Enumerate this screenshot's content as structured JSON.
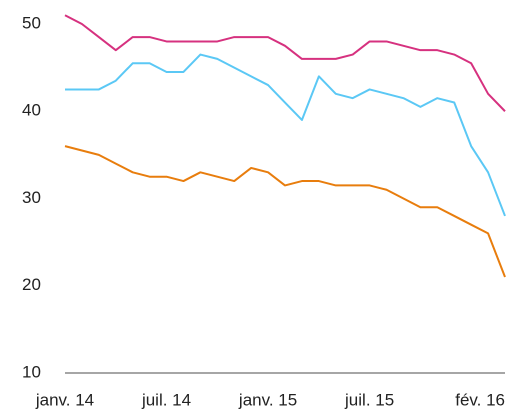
{
  "chart_data": {
    "type": "line",
    "x": [
      0,
      1,
      2,
      3,
      4,
      5,
      6,
      7,
      8,
      9,
      10,
      11,
      12,
      13,
      14,
      15,
      16,
      17,
      18,
      19,
      20,
      21,
      22,
      23,
      24,
      25,
      26
    ],
    "series": [
      {
        "color": "#d6317f",
        "values": [
          51,
          50,
          48.5,
          47,
          48.5,
          48.5,
          48,
          48,
          48,
          48,
          48.5,
          48.5,
          48.5,
          47.5,
          46,
          46,
          46,
          46.5,
          48,
          48,
          47.5,
          47,
          47,
          46.5,
          45.5,
          42,
          40
        ]
      },
      {
        "color": "#5bc8f5",
        "values": [
          42.5,
          42.5,
          42.5,
          43.5,
          45.5,
          45.5,
          44.5,
          44.5,
          46.5,
          46,
          45,
          44,
          43,
          41,
          39,
          44,
          42,
          41.5,
          42.5,
          42,
          41.5,
          40.5,
          41.5,
          41,
          36,
          33,
          28
        ]
      },
      {
        "color": "#e87d0d",
        "values": [
          36,
          35.5,
          35,
          34,
          33,
          32.5,
          32.5,
          32,
          33,
          32.5,
          32,
          33.5,
          33,
          31.5,
          32,
          32,
          31.5,
          31.5,
          31.5,
          31,
          30,
          29,
          29,
          28,
          27,
          26,
          21
        ]
      }
    ],
    "xlim": [
      0,
      26
    ],
    "xticks": [
      {
        "value": 0,
        "label": "janv. 14"
      },
      {
        "value": 6,
        "label": "juil. 14"
      },
      {
        "value": 12,
        "label": "janv. 15"
      },
      {
        "value": 18,
        "label": "juil. 15"
      },
      {
        "value": 25,
        "label": "fév. 16"
      }
    ],
    "ylim": [
      10,
      52
    ],
    "yticks": [
      10,
      20,
      30,
      40,
      50
    ]
  }
}
